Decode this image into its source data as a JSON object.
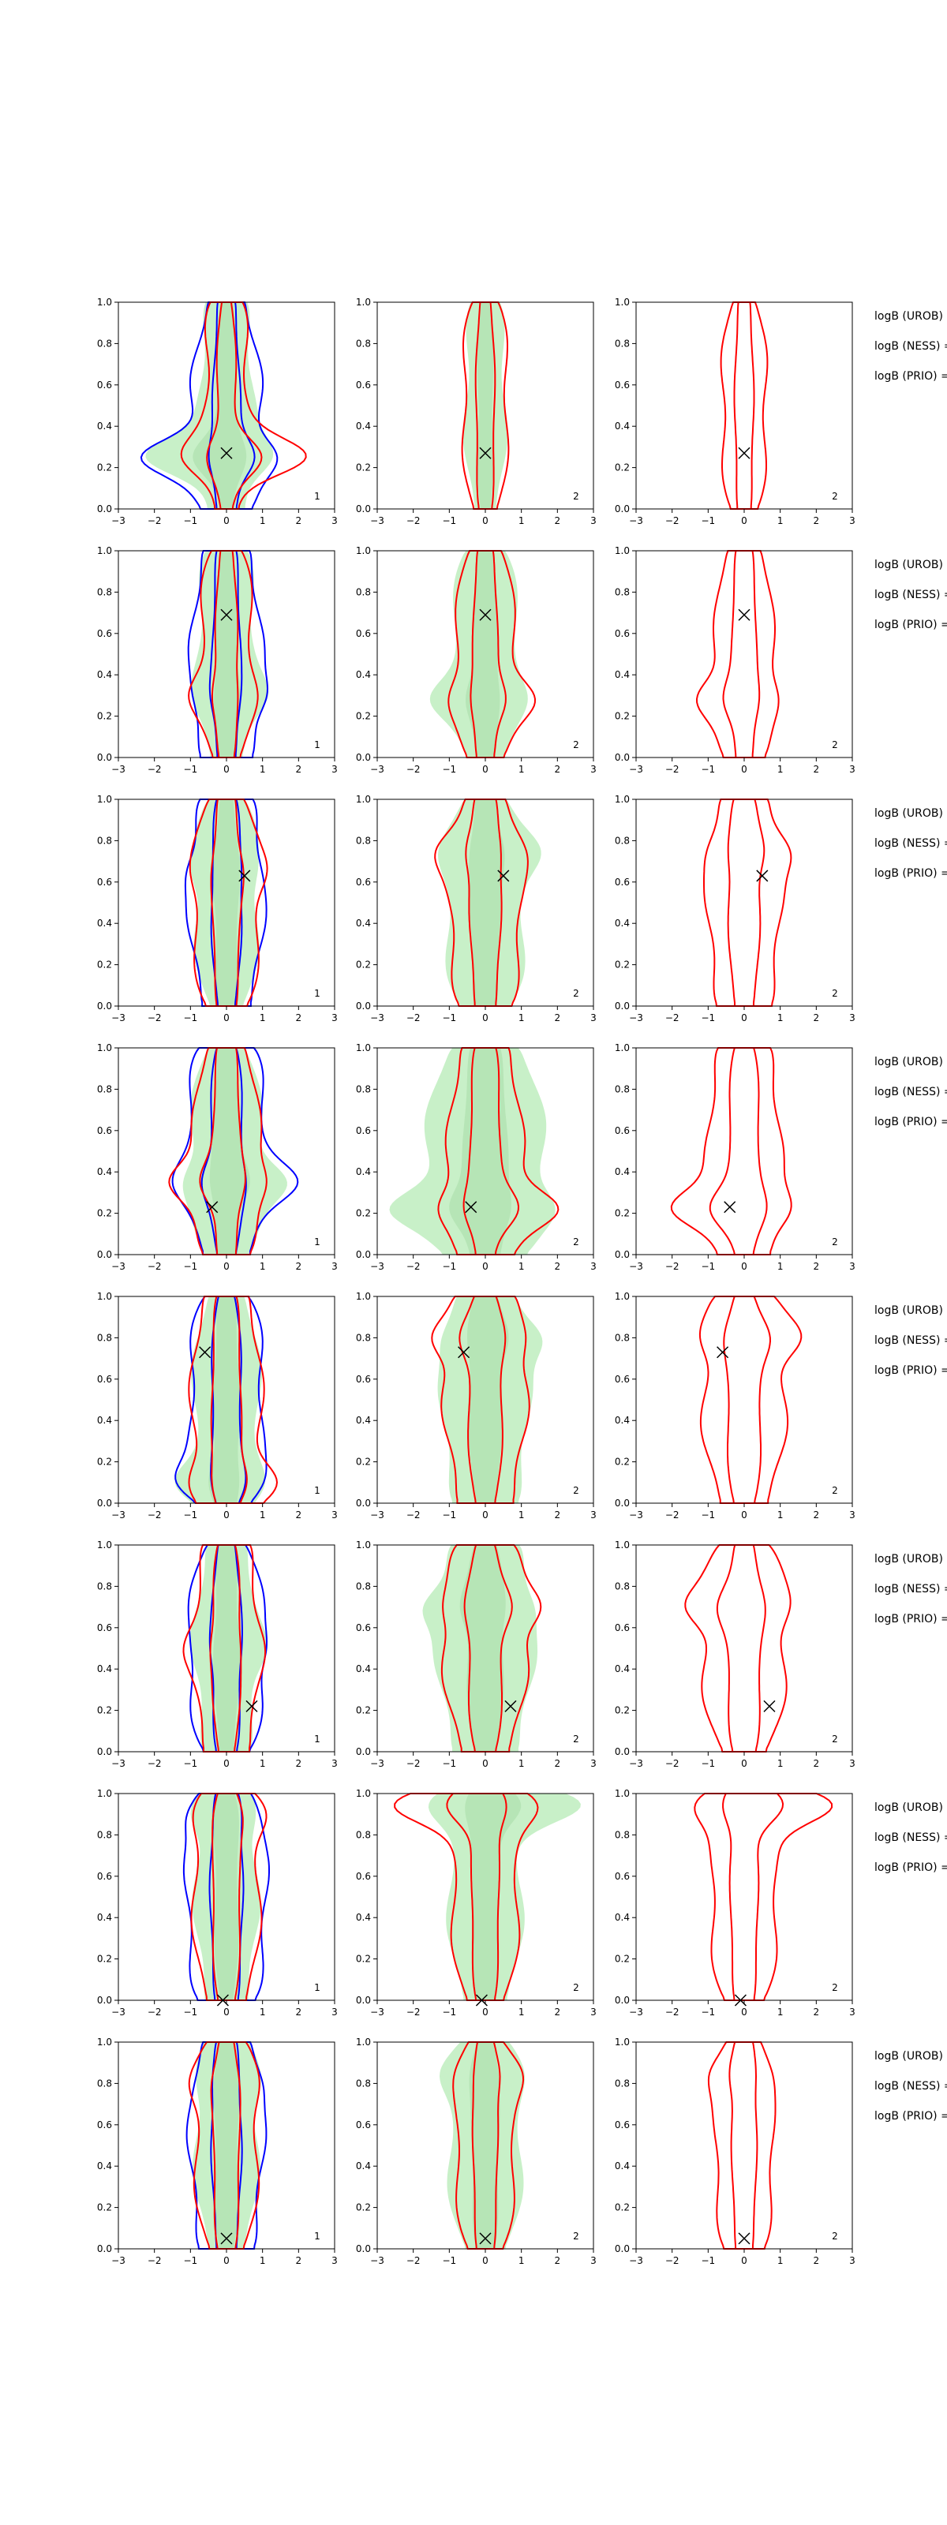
{
  "figure": {
    "title": "",
    "logb_labels": [
      "logB (UROB) =",
      "logB (NESS) =",
      "logB (PRIO) ="
    ]
  },
  "chart_data": {
    "type": "contour",
    "grid": false,
    "legend": "none",
    "xlim": [
      -3,
      3
    ],
    "ylim": [
      0,
      1
    ],
    "xticks": [
      "−3",
      "−2",
      "−1",
      "0",
      "1",
      "2",
      "3"
    ],
    "yticks": [
      "0.0",
      "0.2",
      "0.4",
      "0.6",
      "0.8",
      "1.0"
    ],
    "colors": {
      "urob": "#0000ff",
      "ness": "#ff0000",
      "prio": "#ff0000",
      "fill_outer": "#c8f0c8",
      "fill_inner": "#a8dca8",
      "marker": "#000000"
    },
    "rows": [
      {
        "marker": [
          0.0,
          0.27
        ],
        "panels": [
          {
            "label": "1",
            "blue": [
              0.9,
              0.35
            ],
            "red": [
              0.6,
              0.3
            ],
            "fill": [
              0.75,
              0.3
            ],
            "flare": [
              1.6,
              0.25
            ]
          },
          {
            "label": "2",
            "red": [
              0.6,
              0.22
            ],
            "fill": [
              0.55,
              0.25
            ],
            "flare": [
              0,
              0
            ]
          },
          {
            "label": "2",
            "red": [
              0.6,
              0.22
            ],
            "fill": null,
            "flare": [
              0,
              0
            ]
          }
        ]
      },
      {
        "marker": [
          0.0,
          0.69
        ],
        "panels": [
          {
            "label": "1",
            "blue": [
              0.95,
              0.3
            ],
            "red": [
              0.7,
              0.25
            ],
            "fill": [
              0.8,
              0.3
            ],
            "flare": [
              0.3,
              0.3
            ]
          },
          {
            "label": "2",
            "red": [
              0.8,
              0.2
            ],
            "fill": [
              0.9,
              0.25
            ],
            "flare": [
              0.6,
              0.28
            ]
          },
          {
            "label": "2",
            "red": [
              0.8,
              0.2
            ],
            "fill": null,
            "flare": [
              0.6,
              0.28
            ]
          }
        ]
      },
      {
        "marker": [
          0.5,
          0.63
        ],
        "panels": [
          {
            "label": "1",
            "blue": [
              1.0,
              0.3
            ],
            "red": [
              0.9,
              0.25
            ],
            "fill": [
              0.85,
              0.3
            ],
            "flare": [
              0.2,
              0.65
            ]
          },
          {
            "label": "2",
            "red": [
              1.0,
              0.3
            ],
            "fill": [
              1.1,
              0.35
            ],
            "flare": [
              0.4,
              0.75
            ]
          },
          {
            "label": "2",
            "red": [
              1.0,
              0.3
            ],
            "fill": null,
            "flare": [
              0.4,
              0.75
            ]
          }
        ]
      },
      {
        "marker": [
          -0.4,
          0.23
        ],
        "panels": [
          {
            "label": "1",
            "blue": [
              1.1,
              0.3
            ],
            "red": [
              0.9,
              0.25
            ],
            "fill": [
              0.95,
              0.3
            ],
            "flare": [
              0.8,
              0.35
            ]
          },
          {
            "label": "2",
            "red": [
              1.0,
              0.3
            ],
            "fill": [
              1.6,
              0.35
            ],
            "flare": [
              1.2,
              0.22
            ]
          },
          {
            "label": "2",
            "red": [
              1.0,
              0.3
            ],
            "fill": null,
            "flare": [
              1.2,
              0.22
            ]
          }
        ]
      },
      {
        "marker": [
          -0.6,
          0.73
        ],
        "panels": [
          {
            "label": "1",
            "blue": [
              1.0,
              0.3
            ],
            "red": [
              0.95,
              0.28
            ],
            "fill": [
              0.9,
              0.3
            ],
            "flare": [
              0.6,
              0.1
            ]
          },
          {
            "label": "2",
            "red": [
              1.1,
              0.35
            ],
            "fill": [
              1.2,
              0.35
            ],
            "flare": [
              0.6,
              0.8
            ]
          },
          {
            "label": "2",
            "red": [
              1.1,
              0.35
            ],
            "fill": null,
            "flare": [
              0.6,
              0.8
            ]
          }
        ]
      },
      {
        "marker": [
          0.7,
          0.22
        ],
        "panels": [
          {
            "label": "1",
            "blue": [
              1.0,
              0.3
            ],
            "red": [
              0.9,
              0.28
            ],
            "fill": [
              0.85,
              0.3
            ],
            "flare": [
              0.2,
              0.5
            ]
          },
          {
            "label": "2",
            "red": [
              1.1,
              0.35
            ],
            "fill": [
              1.3,
              0.4
            ],
            "flare": [
              0.6,
              0.7
            ]
          },
          {
            "label": "2",
            "red": [
              1.1,
              0.35
            ],
            "fill": null,
            "flare": [
              0.6,
              0.7
            ]
          }
        ]
      },
      {
        "marker": [
          -0.1,
          0.0
        ],
        "panels": [
          {
            "label": "1",
            "blue": [
              1.1,
              0.3
            ],
            "red": [
              0.9,
              0.25
            ],
            "fill": [
              0.85,
              0.3
            ],
            "flare": [
              0.3,
              0.9
            ]
          },
          {
            "label": "2",
            "red": [
              0.9,
              0.25
            ],
            "fill": [
              1.0,
              0.3
            ],
            "flare": [
              1.8,
              0.95
            ]
          },
          {
            "label": "2",
            "red": [
              0.9,
              0.25
            ],
            "fill": null,
            "flare": [
              1.8,
              0.95
            ]
          }
        ]
      },
      {
        "marker": [
          0.0,
          0.05
        ],
        "panels": [
          {
            "label": "1",
            "blue": [
              1.0,
              0.3
            ],
            "red": [
              0.85,
              0.25
            ],
            "fill": [
              0.85,
              0.3
            ],
            "flare": [
              0.2,
              0.8
            ]
          },
          {
            "label": "2",
            "red": [
              0.8,
              0.22
            ],
            "fill": [
              1.0,
              0.3
            ],
            "flare": [
              0.3,
              0.85
            ]
          },
          {
            "label": "2",
            "red": [
              0.8,
              0.22
            ],
            "fill": null,
            "flare": [
              0.3,
              0.85
            ]
          }
        ]
      }
    ]
  }
}
